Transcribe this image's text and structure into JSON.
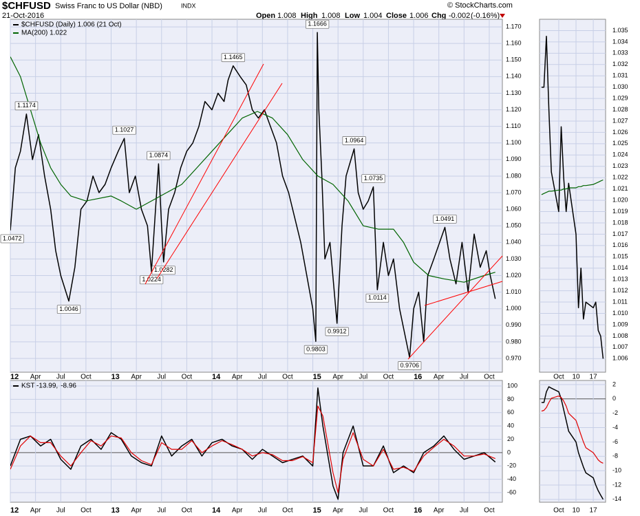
{
  "header": {
    "symbol": "$CHFUSD",
    "name": "Swiss Franc to US Dollar (NBD)",
    "exchange": "INDX",
    "date": "21-Oct-2016",
    "source": "© StockCharts.com",
    "quote": {
      "open_label": "Open",
      "open": 1.008,
      "high_label": "High",
      "high": 1.008,
      "low_label": "Low",
      "low": 1.004,
      "close_label": "Close",
      "close": 1.006,
      "change_label": "Chg",
      "change": -0.002,
      "change_pct": "(-0.16%)"
    }
  },
  "chart_data": [
    {
      "type": "line",
      "grid": true,
      "xlim": [
        2012,
        2016.88
      ],
      "ylim": [
        0.9617,
        1.1746
      ],
      "xticks": [
        {
          "value": 2012,
          "label": "12"
        },
        {
          "value": 2012.25,
          "label": "Apr"
        },
        {
          "value": 2012.5,
          "label": "Jul"
        },
        {
          "value": 2012.75,
          "label": "Oct"
        },
        {
          "value": 2013,
          "label": "13"
        },
        {
          "value": 2013.25,
          "label": "Apr"
        },
        {
          "value": 2013.5,
          "label": "Jul"
        },
        {
          "value": 2013.75,
          "label": "Oct"
        },
        {
          "value": 2014,
          "label": "14"
        },
        {
          "value": 2014.25,
          "label": "Apr"
        },
        {
          "value": 2014.5,
          "label": "Jul"
        },
        {
          "value": 2014.75,
          "label": "Oct"
        },
        {
          "value": 2015,
          "label": "15"
        },
        {
          "value": 2015.25,
          "label": "Apr"
        },
        {
          "value": 2015.5,
          "label": "Jul"
        },
        {
          "value": 2015.75,
          "label": "Oct"
        },
        {
          "value": 2016,
          "label": "16"
        },
        {
          "value": 2016.25,
          "label": "Apr"
        },
        {
          "value": 2016.5,
          "label": "Jul"
        },
        {
          "value": 2016.75,
          "label": "Oct"
        }
      ],
      "yticks": [
        {
          "value": 0.97,
          "label": "0.970"
        },
        {
          "value": 0.98,
          "label": "0.980"
        },
        {
          "value": 0.99,
          "label": "0.990"
        },
        {
          "value": 1.0,
          "label": "1.000"
        },
        {
          "value": 1.01,
          "label": "1.010"
        },
        {
          "value": 1.02,
          "label": "1.020"
        },
        {
          "value": 1.03,
          "label": "1.030"
        },
        {
          "value": 1.04,
          "label": "1.040"
        },
        {
          "value": 1.05,
          "label": "1.050"
        },
        {
          "value": 1.06,
          "label": "1.060"
        },
        {
          "value": 1.07,
          "label": "1.070"
        },
        {
          "value": 1.08,
          "label": "1.080"
        },
        {
          "value": 1.09,
          "label": "1.090"
        },
        {
          "value": 1.1,
          "label": "1.100"
        },
        {
          "value": 1.11,
          "label": "1.110"
        },
        {
          "value": 1.12,
          "label": "1.120"
        },
        {
          "value": 1.13,
          "label": "1.130"
        },
        {
          "value": 1.14,
          "label": "1.140"
        },
        {
          "value": 1.15,
          "label": "1.150"
        },
        {
          "value": 1.16,
          "label": "1.160"
        },
        {
          "value": 1.17,
          "label": "1.170"
        }
      ],
      "series": [
        {
          "name": "$CHFUSD (Daily) 1.006 (21 Oct)",
          "color": "#000000",
          "x": [
            2012.0,
            2012.05,
            2012.1,
            2012.16,
            2012.22,
            2012.28,
            2012.34,
            2012.4,
            2012.45,
            2012.5,
            2012.58,
            2012.64,
            2012.7,
            2012.76,
            2012.82,
            2012.88,
            2012.94,
            2013.0,
            2013.07,
            2013.13,
            2013.18,
            2013.24,
            2013.3,
            2013.36,
            2013.4,
            2013.44,
            2013.47,
            2013.5,
            2013.52,
            2013.57,
            2013.63,
            2013.69,
            2013.75,
            2013.81,
            2013.87,
            2013.93,
            2014.0,
            2014.06,
            2014.12,
            2014.16,
            2014.21,
            2014.28,
            2014.34,
            2014.4,
            2014.46,
            2014.52,
            2014.58,
            2014.64,
            2014.7,
            2014.76,
            2014.82,
            2014.88,
            2014.94,
            2015.0,
            2015.03,
            2015.045,
            2015.06,
            2015.09,
            2015.12,
            2015.17,
            2015.24,
            2015.29,
            2015.33,
            2015.41,
            2015.45,
            2015.5,
            2015.55,
            2015.6,
            2015.64,
            2015.7,
            2015.75,
            2015.8,
            2015.86,
            2015.96,
            2016.0,
            2016.05,
            2016.1,
            2016.14,
            2016.2,
            2016.31,
            2016.36,
            2016.42,
            2016.48,
            2016.54,
            2016.6,
            2016.66,
            2016.72,
            2016.76,
            2016.81
          ],
          "values": [
            1.0472,
            1.085,
            1.095,
            1.1174,
            1.09,
            1.105,
            1.08,
            1.06,
            1.035,
            1.02,
            1.0046,
            1.025,
            1.06,
            1.065,
            1.08,
            1.07,
            1.075,
            1.085,
            1.095,
            1.1027,
            1.07,
            1.08,
            1.06,
            1.05,
            1.0224,
            1.06,
            1.0874,
            1.05,
            1.0282,
            1.06,
            1.07,
            1.085,
            1.095,
            1.1,
            1.11,
            1.125,
            1.12,
            1.13,
            1.125,
            1.138,
            1.1465,
            1.14,
            1.135,
            1.12,
            1.115,
            1.12,
            1.11,
            1.1,
            1.08,
            1.07,
            1.055,
            1.04,
            1.02,
            1.0,
            0.9803,
            1.1666,
            1.12,
            1.08,
            1.03,
            1.04,
            0.9912,
            1.05,
            1.08,
            1.0964,
            1.07,
            1.06,
            1.065,
            1.0735,
            1.0114,
            1.04,
            1.02,
            1.03,
            1.0,
            0.9706,
            1.0,
            1.01,
            0.98,
            1.02,
            1.03,
            1.0491,
            1.03,
            1.015,
            1.04,
            1.01,
            1.045,
            1.025,
            1.035,
            1.02,
            1.006
          ]
        },
        {
          "name": "MA(200) 1.022",
          "color": "#006400",
          "x": [
            2012.0,
            2012.1,
            2012.2,
            2012.3,
            2012.4,
            2012.5,
            2012.6,
            2012.75,
            2013.0,
            2013.1,
            2013.25,
            2013.4,
            2013.55,
            2013.7,
            2013.85,
            2014.0,
            2014.15,
            2014.3,
            2014.45,
            2014.6,
            2014.75,
            2014.9,
            2015.05,
            2015.2,
            2015.35,
            2015.5,
            2015.65,
            2015.8,
            2015.9,
            2016.0,
            2016.15,
            2016.3,
            2016.5,
            2016.7,
            2016.81
          ],
          "values": [
            1.152,
            1.14,
            1.12,
            1.1,
            1.085,
            1.075,
            1.068,
            1.065,
            1.068,
            1.065,
            1.06,
            1.065,
            1.07,
            1.075,
            1.085,
            1.095,
            1.105,
            1.115,
            1.119,
            1.115,
            1.105,
            1.09,
            1.08,
            1.075,
            1.065,
            1.05,
            1.048,
            1.048,
            1.04,
            1.028,
            1.02,
            1.018,
            1.016,
            1.02,
            1.022
          ]
        }
      ],
      "annotations": [
        {
          "x": 2012.0,
          "value": 1.0472
        },
        {
          "x": 2012.16,
          "value": 1.1174
        },
        {
          "x": 2012.58,
          "value": 1.0046
        },
        {
          "x": 2013.13,
          "value": 1.1027
        },
        {
          "x": 2013.4,
          "value": 1.0224
        },
        {
          "x": 2013.47,
          "value": 1.0874
        },
        {
          "x": 2013.52,
          "value": 1.0282
        },
        {
          "x": 2014.21,
          "value": 1.1465
        },
        {
          "x": 2015.03,
          "value": 0.9803
        },
        {
          "x": 2015.045,
          "value": 1.1666
        },
        {
          "x": 2015.24,
          "value": 0.9912
        },
        {
          "x": 2015.41,
          "value": 1.0964
        },
        {
          "x": 2015.6,
          "value": 1.0735
        },
        {
          "x": 2015.64,
          "value": 1.0114
        },
        {
          "x": 2015.96,
          "value": 0.9706
        },
        {
          "x": 2016.31,
          "value": 1.0491
        }
      ]
    },
    {
      "type": "line",
      "grid": true,
      "zero_line": true,
      "xlim": [
        2012,
        2016.88
      ],
      "ylim": [
        -74.4,
        108.3
      ],
      "xticks": [
        {
          "value": 2012,
          "label": "12"
        },
        {
          "value": 2012.25,
          "label": "Apr"
        },
        {
          "value": 2012.5,
          "label": "Jul"
        },
        {
          "value": 2012.75,
          "label": "Oct"
        },
        {
          "value": 2013,
          "label": "13"
        },
        {
          "value": 2013.25,
          "label": "Apr"
        },
        {
          "value": 2013.5,
          "label": "Jul"
        },
        {
          "value": 2013.75,
          "label": "Oct"
        },
        {
          "value": 2014,
          "label": "14"
        },
        {
          "value": 2014.25,
          "label": "Apr"
        },
        {
          "value": 2014.5,
          "label": "Jul"
        },
        {
          "value": 2014.75,
          "label": "Oct"
        },
        {
          "value": 2015,
          "label": "15"
        },
        {
          "value": 2015.25,
          "label": "Apr"
        },
        {
          "value": 2015.5,
          "label": "Jul"
        },
        {
          "value": 2015.75,
          "label": "Oct"
        },
        {
          "value": 2016,
          "label": "16"
        },
        {
          "value": 2016.25,
          "label": "Apr"
        },
        {
          "value": 2016.5,
          "label": "Jul"
        },
        {
          "value": 2016.75,
          "label": "Oct"
        }
      ],
      "yticks": [
        -60,
        -40,
        -20,
        0,
        20,
        40,
        60,
        80,
        100
      ],
      "x": [
        2012.0,
        2012.1,
        2012.2,
        2012.3,
        2012.4,
        2012.5,
        2012.6,
        2012.7,
        2012.8,
        2012.9,
        2013.0,
        2013.1,
        2013.2,
        2013.3,
        2013.4,
        2013.5,
        2013.6,
        2013.7,
        2013.8,
        2013.9,
        2014.0,
        2014.1,
        2014.2,
        2014.3,
        2014.4,
        2014.5,
        2014.6,
        2014.7,
        2014.8,
        2014.9,
        2015.0,
        2015.05,
        2015.1,
        2015.2,
        2015.25,
        2015.3,
        2015.4,
        2015.5,
        2015.6,
        2015.7,
        2015.8,
        2015.9,
        2016.0,
        2016.1,
        2016.2,
        2016.3,
        2016.4,
        2016.5,
        2016.6,
        2016.7,
        2016.81
      ],
      "series": [
        {
          "name": "KST -13.99,",
          "color": "#000000",
          "values": [
            -20,
            20,
            25,
            10,
            20,
            -10,
            -25,
            10,
            20,
            5,
            30,
            20,
            -5,
            -15,
            -20,
            25,
            -5,
            10,
            20,
            -5,
            15,
            20,
            10,
            5,
            -10,
            5,
            -5,
            -15,
            -10,
            -5,
            -20,
            97,
            40,
            -50,
            -70,
            0,
            40,
            -20,
            -20,
            10,
            -30,
            -20,
            -30,
            0,
            10,
            25,
            5,
            -10,
            -5,
            0,
            -13.99
          ]
        },
        {
          "name": "-8.96",
          "color": "#e00000",
          "values": [
            -25,
            10,
            25,
            15,
            15,
            -5,
            -20,
            0,
            18,
            10,
            25,
            22,
            0,
            -12,
            -18,
            15,
            5,
            5,
            18,
            0,
            10,
            18,
            12,
            5,
            -5,
            0,
            -3,
            -12,
            -12,
            -6,
            -15,
            70,
            55,
            -30,
            -60,
            -10,
            30,
            -10,
            -20,
            5,
            -25,
            -22,
            -28,
            -5,
            8,
            20,
            10,
            -5,
            -5,
            -2,
            -8.96
          ]
        }
      ]
    },
    {
      "type": "line",
      "grid": true,
      "xlim": [
        -4.8,
        22
      ],
      "ylim": [
        1.0048,
        1.036
      ],
      "xticks": [
        {
          "value": 3,
          "label": "Oct"
        },
        10,
        17
      ],
      "yticks": [
        {
          "value": 1.006,
          "label": "1.006"
        },
        {
          "value": 1.007,
          "label": "1.007"
        },
        {
          "value": 1.008,
          "label": "1.008"
        },
        {
          "value": 1.009,
          "label": "1.009"
        },
        {
          "value": 1.01,
          "label": "1.010"
        },
        {
          "value": 1.011,
          "label": "1.011"
        },
        {
          "value": 1.012,
          "label": "1.012"
        },
        {
          "value": 1.013,
          "label": "1.013"
        },
        {
          "value": 1.014,
          "label": "1.014"
        },
        {
          "value": 1.015,
          "label": "1.015"
        },
        {
          "value": 1.016,
          "label": "1.016"
        },
        {
          "value": 1.017,
          "label": "1.017"
        },
        {
          "value": 1.018,
          "label": "1.018"
        },
        {
          "value": 1.019,
          "label": "1.019"
        },
        {
          "value": 1.02,
          "label": "1.020"
        },
        {
          "value": 1.021,
          "label": "1.021"
        },
        {
          "value": 1.022,
          "label": "1.022"
        },
        {
          "value": 1.023,
          "label": "1.023"
        },
        {
          "value": 1.024,
          "label": "1.024"
        },
        {
          "value": 1.025,
          "label": "1.025"
        },
        {
          "value": 1.026,
          "label": "1.026"
        },
        {
          "value": 1.027,
          "label": "1.027"
        },
        {
          "value": 1.028,
          "label": "1.028"
        },
        {
          "value": 1.029,
          "label": "1.029"
        },
        {
          "value": 1.03,
          "label": "1.030"
        },
        {
          "value": 1.031,
          "label": "1.031"
        },
        {
          "value": 1.032,
          "label": "1.032"
        },
        {
          "value": 1.033,
          "label": "1.033"
        },
        {
          "value": 1.034,
          "label": "1.034"
        },
        {
          "value": 1.035,
          "label": "1.035"
        }
      ],
      "x": [
        -4,
        -3,
        -2,
        -1,
        0,
        3,
        4,
        5,
        6,
        7,
        10,
        11,
        12,
        13,
        14,
        17,
        18,
        19,
        20,
        21
      ],
      "series": [
        {
          "color": "#000000",
          "values": [
            1.03,
            1.03,
            1.0345,
            1.028,
            1.0225,
            1.019,
            1.0265,
            1.022,
            1.019,
            1.0215,
            1.017,
            1.0105,
            1.014,
            1.0095,
            1.011,
            1.0105,
            1.011,
            1.0085,
            1.008,
            1.006
          ]
        },
        {
          "color": "#006400",
          "values": [
            1.0205,
            1.0206,
            1.0207,
            1.0208,
            1.0208,
            1.0209,
            1.0209,
            1.021,
            1.021,
            1.0211,
            1.0211,
            1.0212,
            1.0212,
            1.0213,
            1.0213,
            1.0214,
            1.0215,
            1.0216,
            1.0217,
            1.0218
          ]
        }
      ]
    },
    {
      "type": "line",
      "grid": true,
      "zero_line": true,
      "xlim": [
        -4.8,
        22
      ],
      "ylim": [
        -14.4,
        2.57
      ],
      "xticks": [
        {
          "value": 3,
          "label": "Oct"
        },
        10,
        17
      ],
      "yticks": [
        -14,
        -12,
        -10,
        -8,
        -6,
        -4,
        -2,
        0,
        2
      ],
      "x": [
        -4,
        -3,
        -2,
        -1,
        0,
        3,
        4,
        5,
        6,
        7,
        10,
        11,
        12,
        13,
        14,
        17,
        18,
        19,
        20,
        21
      ],
      "series": [
        {
          "color": "#000000",
          "values": [
            -0.5,
            -0.5,
            1,
            1.7,
            1.5,
            1,
            0,
            -1.5,
            -3,
            -4.5,
            -6,
            -7.5,
            -8.5,
            -9.5,
            -10.3,
            -11,
            -12,
            -12.8,
            -13.4,
            -13.99
          ]
        },
        {
          "color": "#e00000",
          "values": [
            -1.7,
            -1.6,
            -1.2,
            -0.5,
            0.1,
            0.4,
            0.2,
            -0.3,
            -1,
            -2,
            -3,
            -4,
            -5,
            -6,
            -6.8,
            -7.5,
            -8,
            -8.5,
            -8.8,
            -8.96
          ]
        }
      ]
    }
  ]
}
